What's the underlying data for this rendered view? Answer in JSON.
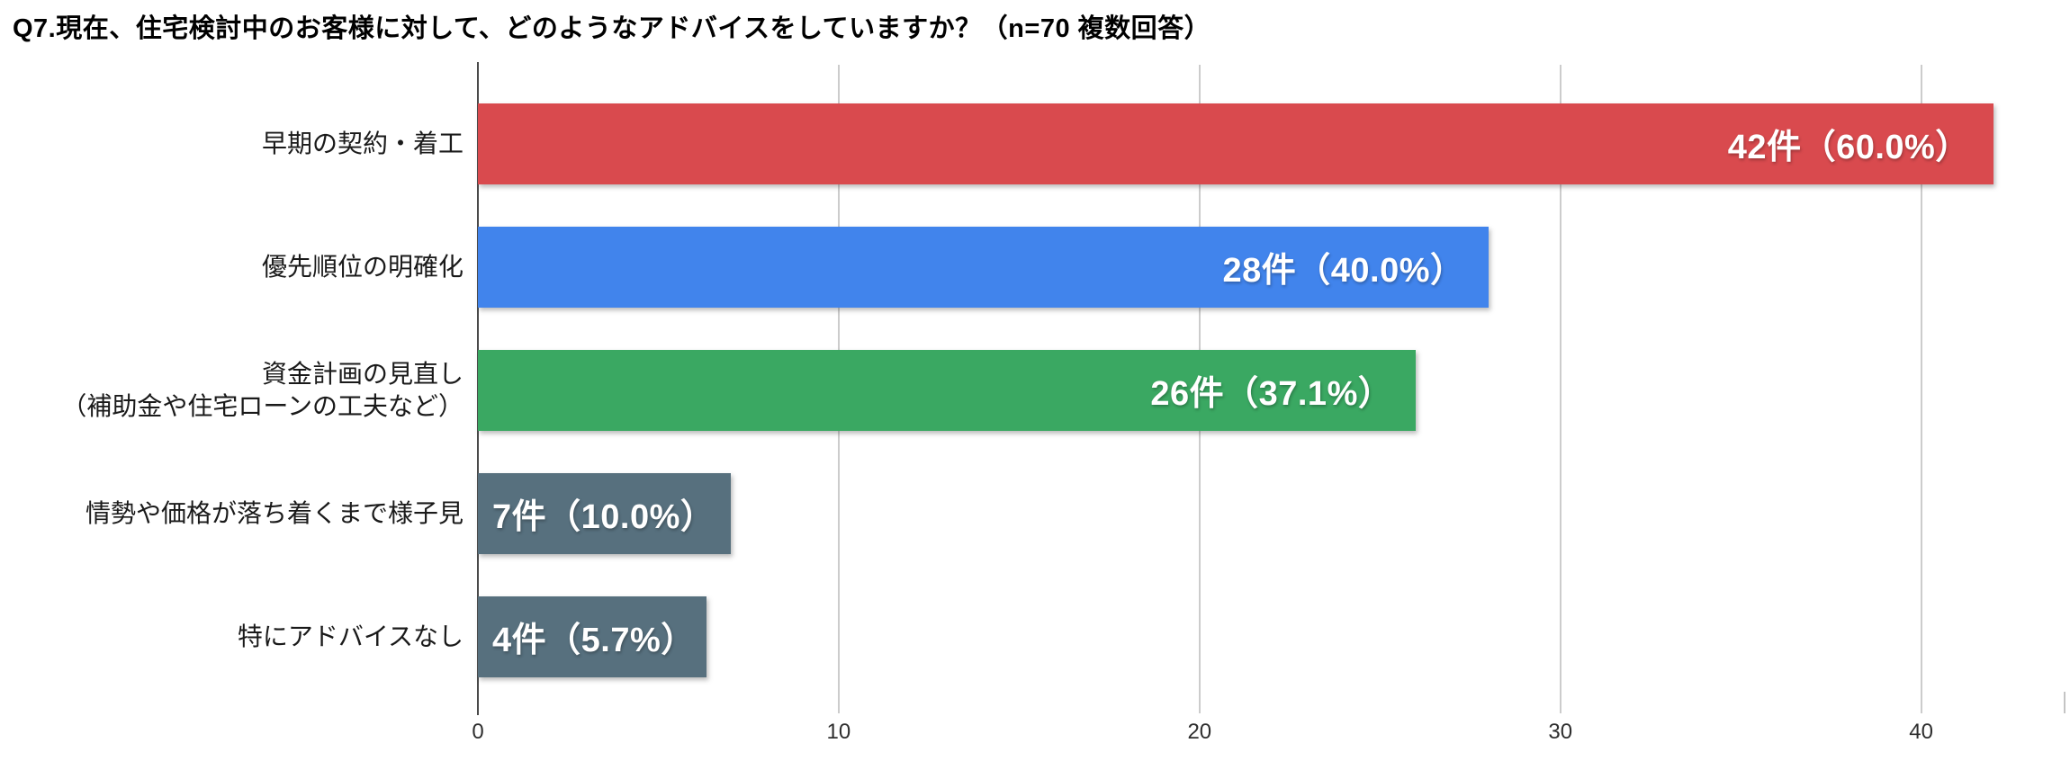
{
  "page": {
    "background": "#ffffff"
  },
  "title": "Q7.現在、住宅検討中のお客様に対して、どのようなアドバイスをしていますか？（n=70 複数回答）",
  "chart_data": {
    "type": "bar",
    "orientation": "horizontal",
    "title": "Q7.現在、住宅検討中のお客様に対して、どのようなアドバイスをしていますか？（n=70 複数回答）",
    "n": 70,
    "categories": [
      [
        "早期の契約・着工"
      ],
      [
        "優先順位の明確化"
      ],
      [
        "資金計画の見直し",
        "（補助金や住宅ローンの工夫など）"
      ],
      [
        "情勢や価格が落ち着くまで様子見"
      ],
      [
        "特にアドバイスなし"
      ]
    ],
    "values": [
      42,
      28,
      26,
      7,
      4
    ],
    "percents": [
      60.0,
      40.0,
      37.1,
      10.0,
      5.7
    ],
    "unit": "件",
    "bar_labels": [
      "42件（60.0%）",
      "28件（40.0%）",
      "26件（37.1%）",
      "7件（10.0%）",
      "4件（5.7%）"
    ],
    "bar_colors": [
      "#d94a4e",
      "#4184ec",
      "#3aa862",
      "#57707e",
      "#57707e"
    ],
    "value_label_align": [
      "right",
      "right",
      "right",
      "left",
      "left"
    ],
    "x_ticks": [
      0,
      10,
      20,
      30,
      40
    ],
    "xlim": [
      0,
      44
    ],
    "grid": true,
    "legend": "none",
    "axis_color": "#4a4a4a",
    "gridline_color": "#cccccc",
    "value_text_color": "#ffffff",
    "category_text_color": "#1a1a1a"
  }
}
